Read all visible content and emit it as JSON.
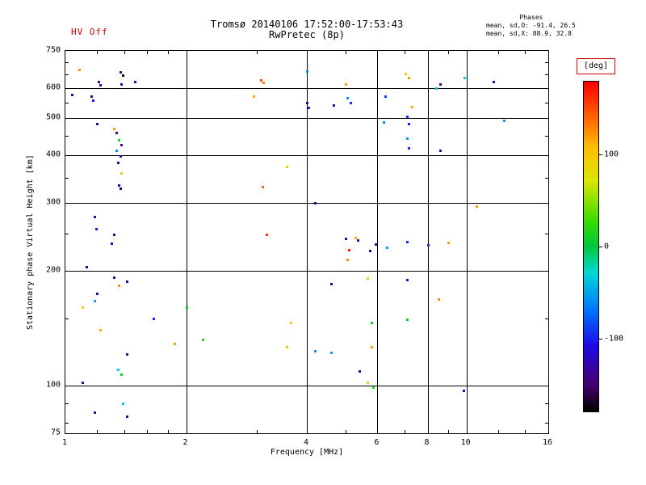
{
  "header": {
    "hv_status": "HV Off",
    "title": "Tromsø 20140106 17:52:00-17:53:43",
    "subtitle": "RwPretec (8p)",
    "phases_label": "Phases",
    "phases_line1": "mean, sd,O: -91.4, 26.5",
    "phases_line2": "mean, sd,X: 88.9, 32.8"
  },
  "colors": {
    "hv_text": "#cc0000",
    "deg_box_border": "#cc0000",
    "grid": "#000000"
  },
  "chart_data": {
    "type": "scatter",
    "title": "Tromsø 20140106 17:52:00-17:53:43",
    "subtitle": "RwPretec (8p)",
    "xlabel": "Frequency [MHz]",
    "ylabel": "Stationary phase Virtual Height [km]",
    "x_scale": "log",
    "y_scale": "log",
    "xlim": [
      1,
      16
    ],
    "ylim": [
      75,
      750
    ],
    "x_ticks": [
      1,
      2,
      4,
      6,
      8,
      10,
      16
    ],
    "y_ticks": [
      75,
      100,
      200,
      300,
      400,
      500,
      600,
      750
    ],
    "x_gridlines": [
      2,
      4,
      6,
      8,
      10
    ],
    "y_gridlines": [
      100,
      200,
      300,
      400,
      500,
      600
    ],
    "x_minor_ticks": [
      1.2,
      1.4,
      1.6,
      1.8,
      3,
      5,
      7,
      9,
      12,
      14
    ],
    "y_minor_ticks": [
      80,
      90,
      150,
      250,
      350,
      450,
      550,
      650,
      700
    ],
    "grid": true,
    "colorbar": {
      "label": "[deg]",
      "min": -180,
      "max": 180,
      "ticks": [
        100,
        0,
        -100
      ],
      "colormap": "rainbow"
    },
    "points_format": [
      "frequency_MHz",
      "virtual_height_km",
      "phase_deg"
    ],
    "points": [
      [
        1.08,
        670,
        125
      ],
      [
        1.21,
        624,
        -135
      ],
      [
        1.22,
        612,
        -140
      ],
      [
        1.37,
        660,
        -145
      ],
      [
        1.39,
        648,
        -170
      ],
      [
        1.38,
        615,
        -135
      ],
      [
        1.49,
        624,
        -130
      ],
      [
        1.04,
        578,
        -135
      ],
      [
        1.16,
        570,
        -140
      ],
      [
        1.17,
        558,
        -100
      ],
      [
        1.2,
        483,
        -135
      ],
      [
        1.32,
        470,
        120
      ],
      [
        1.34,
        458,
        -135
      ],
      [
        1.36,
        438,
        10
      ],
      [
        1.38,
        426,
        -140
      ],
      [
        1.34,
        412,
        -55
      ],
      [
        1.37,
        398,
        -135
      ],
      [
        1.35,
        383,
        -130
      ],
      [
        1.38,
        360,
        95
      ],
      [
        1.36,
        334,
        -135
      ],
      [
        1.37,
        328,
        -160
      ],
      [
        1.18,
        276,
        -135
      ],
      [
        1.19,
        257,
        -100
      ],
      [
        1.32,
        248,
        -140
      ],
      [
        1.3,
        236,
        -130
      ],
      [
        1.13,
        204,
        -135
      ],
      [
        1.32,
        192,
        -140
      ],
      [
        1.36,
        183,
        120
      ],
      [
        1.42,
        187,
        -135
      ],
      [
        1.2,
        174,
        -140
      ],
      [
        1.18,
        167,
        -55
      ],
      [
        1.1,
        160,
        95
      ],
      [
        1.22,
        140,
        115
      ],
      [
        1.42,
        121,
        -140
      ],
      [
        1.1,
        102,
        -135
      ],
      [
        1.35,
        110,
        -30
      ],
      [
        1.38,
        107,
        10
      ],
      [
        1.18,
        85,
        -140
      ],
      [
        1.39,
        90,
        -35
      ],
      [
        1.42,
        83,
        -140
      ],
      [
        1.66,
        150,
        -95
      ],
      [
        1.87,
        129,
        120
      ],
      [
        2.0,
        160,
        5
      ],
      [
        2.2,
        132,
        15
      ],
      [
        3.07,
        630,
        150
      ],
      [
        3.12,
        621,
        130
      ],
      [
        2.95,
        570,
        115
      ],
      [
        3.1,
        331,
        140
      ],
      [
        3.17,
        248,
        165
      ],
      [
        3.56,
        374,
        95
      ],
      [
        3.64,
        146,
        95
      ],
      [
        3.56,
        126,
        100
      ],
      [
        4.0,
        664,
        -55
      ],
      [
        4.0,
        548,
        -135
      ],
      [
        4.03,
        534,
        -100
      ],
      [
        4.19,
        301,
        -140
      ],
      [
        4.19,
        123,
        -60
      ],
      [
        4.6,
        185,
        -135
      ],
      [
        4.66,
        542,
        -140
      ],
      [
        4.6,
        122,
        -55
      ],
      [
        4.99,
        615,
        120
      ],
      [
        5.04,
        565,
        -55
      ],
      [
        5.13,
        548,
        -95
      ],
      [
        4.99,
        242,
        -135
      ],
      [
        5.08,
        227,
        170
      ],
      [
        5.04,
        214,
        125
      ],
      [
        5.28,
        244,
        120
      ],
      [
        5.35,
        240,
        -135
      ],
      [
        5.4,
        109,
        -140
      ],
      [
        5.66,
        191,
        95
      ],
      [
        5.73,
        225,
        -135
      ],
      [
        5.79,
        146,
        10
      ],
      [
        5.79,
        126,
        120
      ],
      [
        5.66,
        102,
        100
      ],
      [
        5.85,
        99,
        20
      ],
      [
        5.92,
        234,
        -135
      ],
      [
        6.28,
        572,
        -90
      ],
      [
        6.2,
        488,
        -60
      ],
      [
        6.34,
        230,
        -50
      ],
      [
        7.05,
        655,
        95
      ],
      [
        7.19,
        638,
        120
      ],
      [
        7.1,
        505,
        -95
      ],
      [
        7.19,
        483,
        -100
      ],
      [
        7.1,
        443,
        -55
      ],
      [
        7.19,
        418,
        -95
      ],
      [
        7.1,
        238,
        -95
      ],
      [
        7.1,
        189,
        -135
      ],
      [
        7.1,
        149,
        5
      ],
      [
        7.3,
        537,
        115
      ],
      [
        8.0,
        233,
        -95
      ],
      [
        8.4,
        600,
        -35
      ],
      [
        8.5,
        168,
        125
      ],
      [
        8.6,
        412,
        -140
      ],
      [
        9.0,
        237,
        120
      ],
      [
        8.6,
        615,
        -140
      ],
      [
        9.9,
        638,
        -30
      ],
      [
        9.85,
        97,
        -140
      ],
      [
        10.6,
        294,
        120
      ],
      [
        11.7,
        624,
        -140
      ],
      [
        12.4,
        493,
        -55
      ]
    ]
  }
}
